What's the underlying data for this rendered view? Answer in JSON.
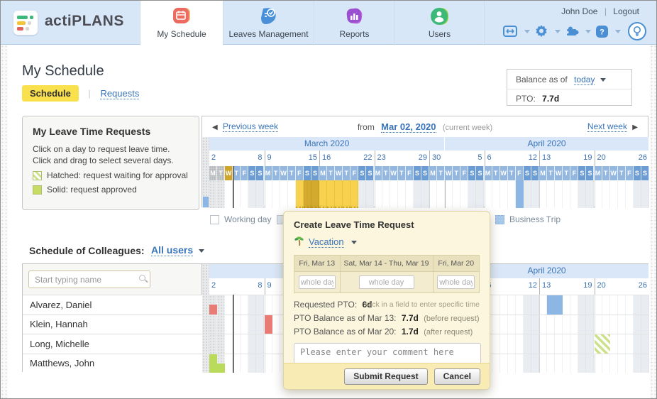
{
  "colors": {
    "accent_link": "#3a74b8",
    "selection_yellow": "#f8d14e",
    "selection_weekend": "#d3a92e",
    "approved_green": "#bada5c",
    "pending_hatch_green": "#cde08a",
    "sick_red": "#e87c74",
    "business_blue": "#8cb6e4",
    "today_gold": "#d0a52c",
    "header_bg": "#d7e7f8",
    "month_band": "#d9e7f8",
    "popup_bg": "#fbf6dd"
  },
  "brand": {
    "name": "actiPLANS"
  },
  "window": {
    "user": "John Doe",
    "divider": "|",
    "logout": "Logout"
  },
  "nav": {
    "tabs": [
      {
        "label": "My Schedule",
        "icon": "my-schedule-icon",
        "active": true
      },
      {
        "label": "Leaves Management",
        "icon": "leaves-management-icon",
        "active": false
      },
      {
        "label": "Reports",
        "icon": "reports-icon",
        "active": false
      },
      {
        "label": "Users",
        "icon": "users-icon",
        "active": false
      }
    ],
    "icons": [
      "date-range-icon",
      "settings-gear-icon",
      "integrations-puzzle-icon",
      "help-icon",
      "tips-lightbulb-icon"
    ]
  },
  "page": {
    "title": "My Schedule",
    "tab_schedule": "Schedule",
    "tab_requests": "Requests",
    "tab_divider": "|"
  },
  "balance": {
    "label": "Balance as of",
    "date_link": "today",
    "pto_label": "PTO:",
    "pto_value": "7.7d"
  },
  "request_panel": {
    "title": "My Leave Time Requests",
    "line1": "Click on a day to request leave time.",
    "line2": "Click and drag to select several days.",
    "legend": [
      {
        "type": "hatched",
        "label": "Hatched: request waiting for approval"
      },
      {
        "type": "solid",
        "label": "Solid: request approved"
      }
    ]
  },
  "calendar": {
    "prev_arrow": "◀",
    "prev": "Previous week",
    "from_label": "from",
    "from_date": "Mar 02, 2020",
    "current_week": "(current week)",
    "next": "Next week",
    "next_arrow": "▶",
    "months": [
      {
        "label": "March 2020",
        "days": 30
      },
      {
        "label": "April 2020",
        "days": 26
      }
    ],
    "weeks": [
      {
        "first": "2",
        "last": "8"
      },
      {
        "first": "9",
        "last": "15"
      },
      {
        "first": "16",
        "last": "22"
      },
      {
        "first": "23",
        "last": "29"
      },
      {
        "first": "30",
        "last": "5"
      },
      {
        "first": "6",
        "last": "12"
      },
      {
        "first": "13",
        "last": "19"
      },
      {
        "first": "20",
        "last": "26"
      }
    ],
    "weekday_letters": [
      "M",
      "T",
      "W",
      "T",
      "F",
      "S",
      "S"
    ],
    "total_days": 56,
    "past_days": 2,
    "today_index": 2,
    "month_start_index": 30,
    "user_blocks": [
      {
        "start": 11,
        "len": 8,
        "type": "selection"
      },
      {
        "start": 39,
        "len": 1,
        "type": "business"
      }
    ],
    "gutter_block": {
      "type": "business"
    }
  },
  "status_legend": [
    {
      "label": "Working day",
      "swatch": "working"
    },
    {
      "label": "N",
      "swatch": "nonwork"
    },
    {
      "label": "Business Trip",
      "swatch": "biz"
    }
  ],
  "colleagues": {
    "title": "Schedule of Colleagues:",
    "filter": "All users",
    "search_placeholder": "Start typing name",
    "rows": [
      {
        "name": "Alvarez, Daniel",
        "blocks": [
          {
            "start": 0,
            "len": 1,
            "type": "red",
            "half": true
          },
          {
            "start": 43,
            "len": 2,
            "type": "business"
          }
        ]
      },
      {
        "name": "Klein, Hannah",
        "blocks": [
          {
            "start": 7,
            "len": 1,
            "type": "red"
          }
        ]
      },
      {
        "name": "Long, Michelle",
        "blocks": [
          {
            "start": 49,
            "len": 2,
            "type": "pending"
          }
        ]
      },
      {
        "name": "Matthews, John",
        "blocks": [
          {
            "start": 0,
            "len": 1,
            "type": "approved"
          },
          {
            "start": 1,
            "len": 1,
            "type": "approved",
            "half": true
          }
        ]
      }
    ]
  },
  "popup": {
    "title": "Create Leave Time Request",
    "leave_type": "Vacation",
    "columns": [
      {
        "label": "Fri, Mar 13",
        "input": "whole day"
      },
      {
        "label": "Sat, Mar 14 - Thu, Mar 19",
        "input": "whole day"
      },
      {
        "label": "Fri, Mar 20",
        "input": "whole day"
      }
    ],
    "requested_label": "Requested PTO:",
    "requested_value": "6d",
    "hint": "click in a field to enter specific time",
    "balance_before": {
      "label": "PTO Balance as of Mar 13:",
      "value": "7.7d",
      "note": "(before request)"
    },
    "balance_after": {
      "label": "PTO Balance as of Mar 20:",
      "value": "1.7d",
      "note": "(after request)"
    },
    "comment_placeholder": "Please enter your comment here",
    "submit": "Submit Request",
    "cancel": "Cancel"
  }
}
